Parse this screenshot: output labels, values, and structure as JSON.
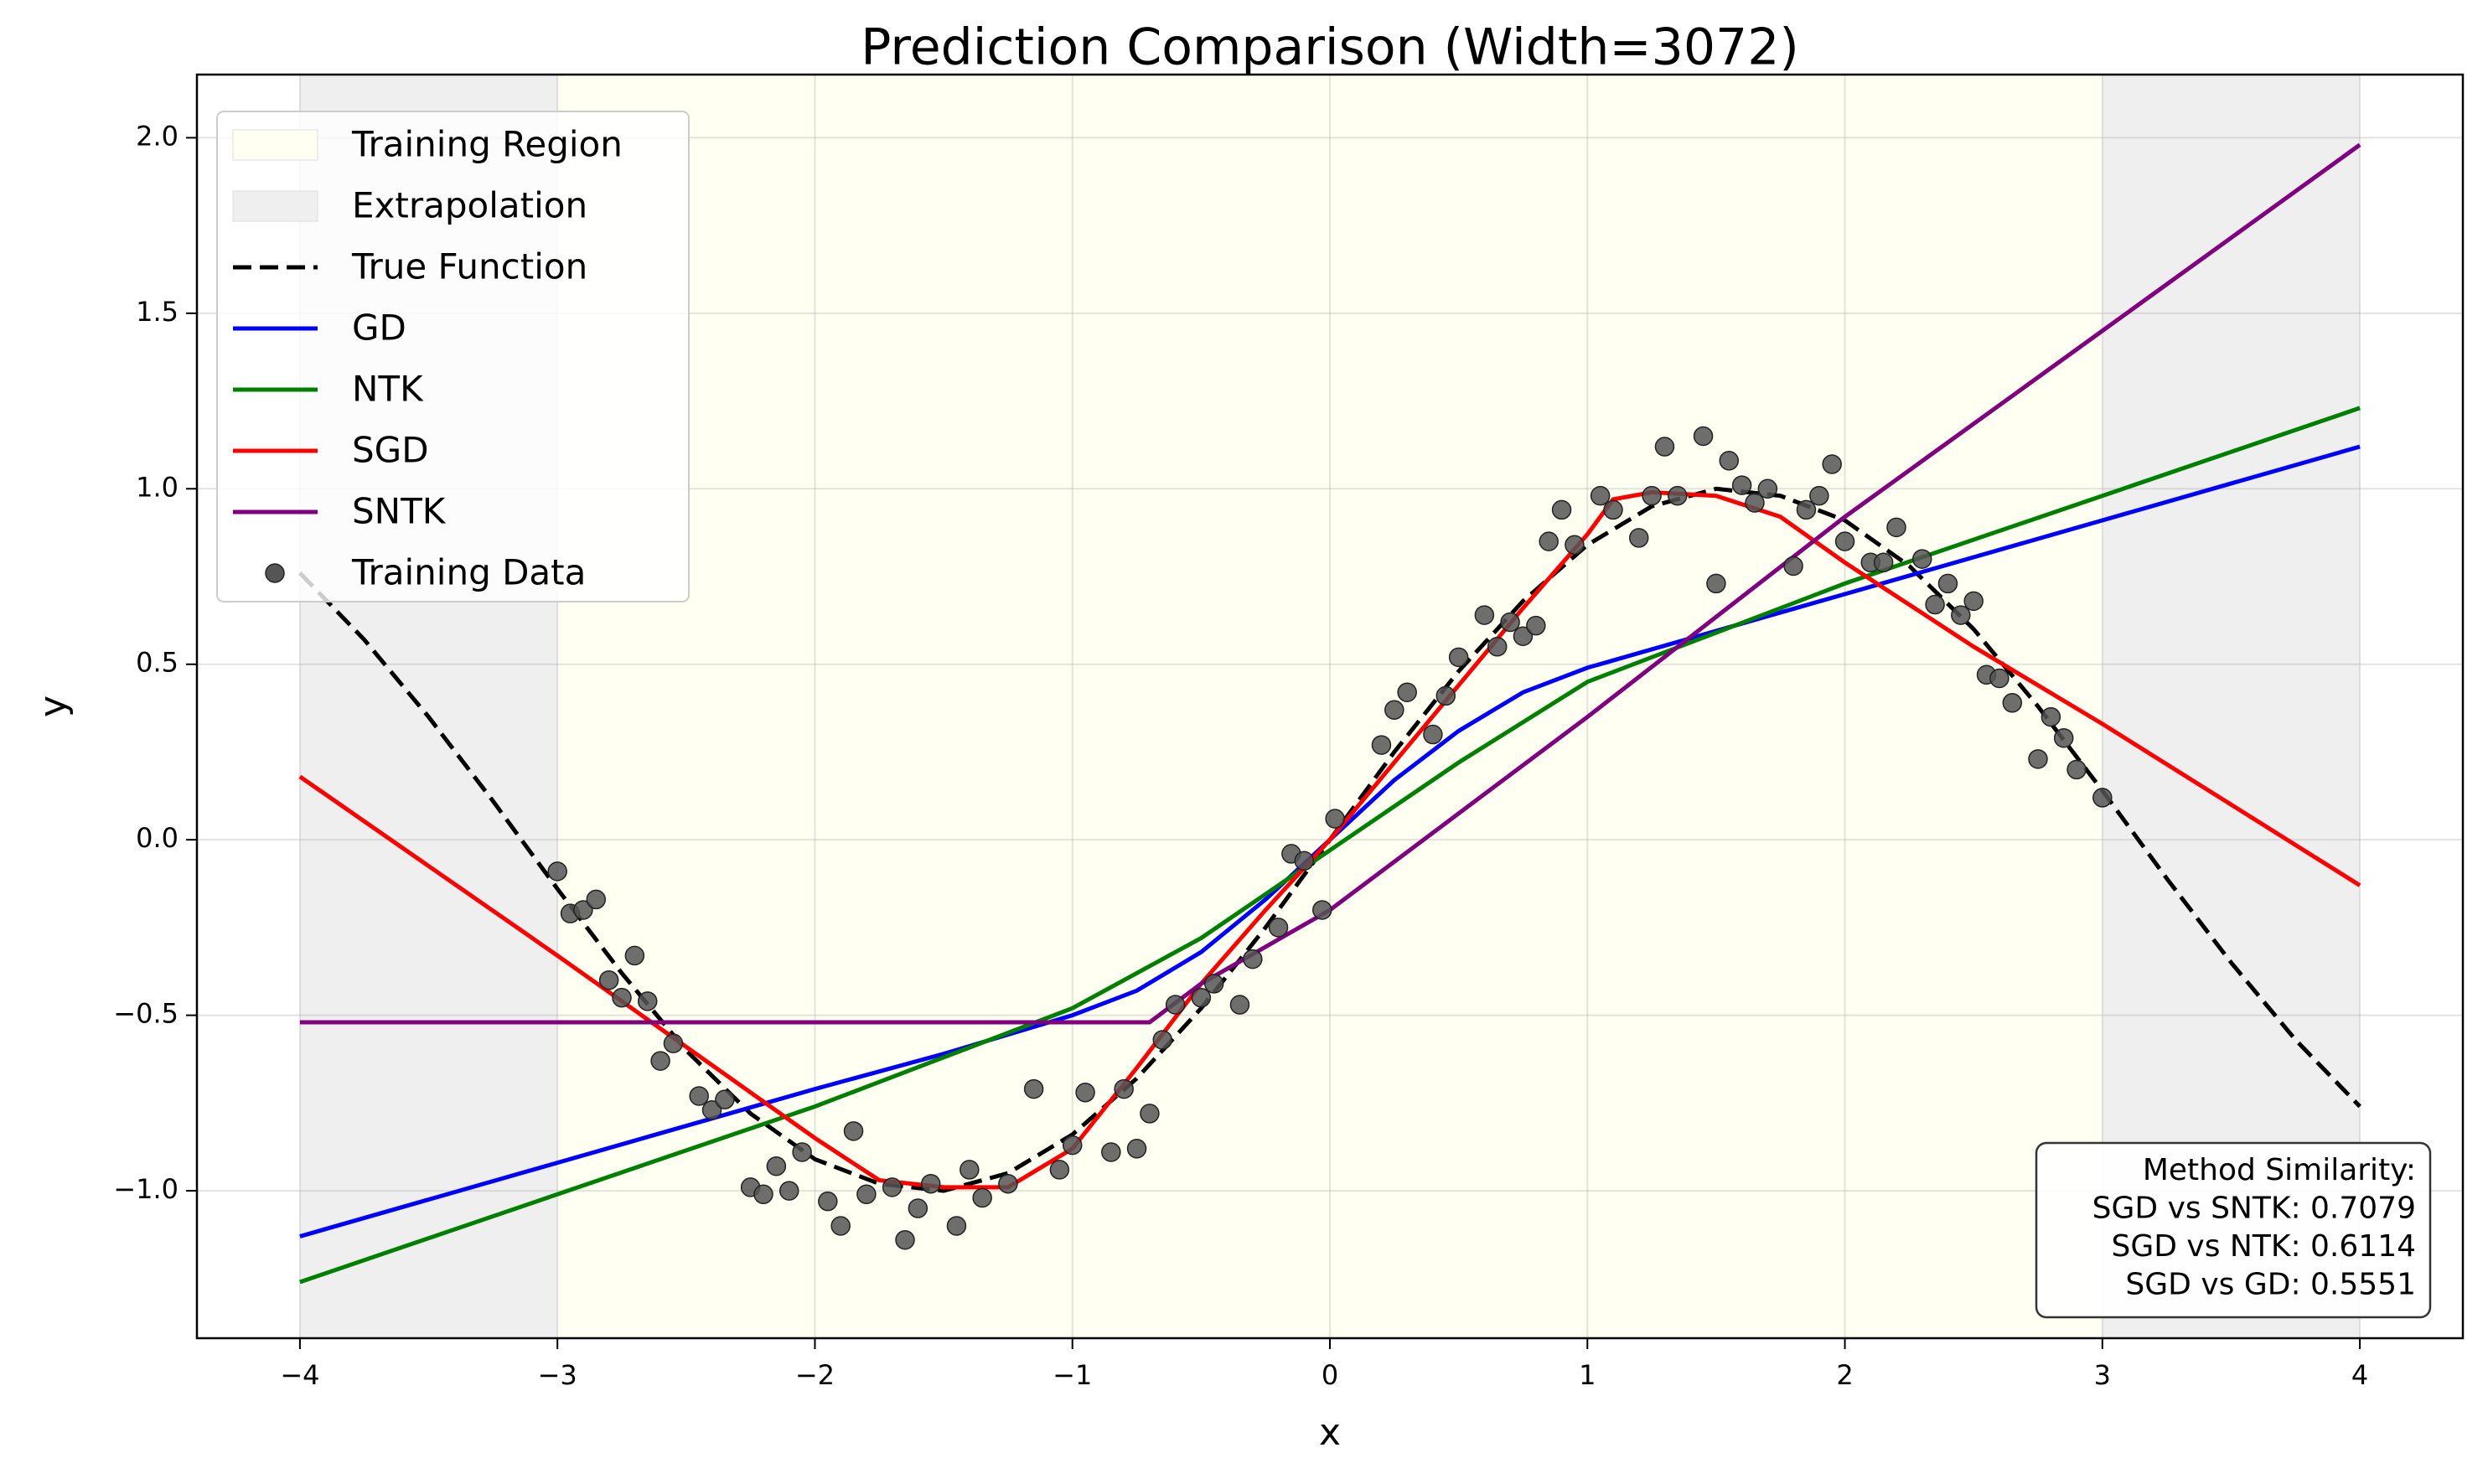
{
  "chart_data": {
    "type": "line",
    "title": "Prediction Comparison (Width=3072)",
    "xlabel": "x",
    "ylabel": "y",
    "xlim": [
      -4.4,
      4.4
    ],
    "ylim": [
      -1.42,
      2.18
    ],
    "xticks": [
      {
        "value": -4,
        "label": "−4"
      },
      {
        "value": -3,
        "label": "−3"
      },
      {
        "value": -2,
        "label": "−2"
      },
      {
        "value": -1,
        "label": "−1"
      },
      0,
      1,
      2,
      3,
      4
    ],
    "yticks": [
      {
        "value": -1,
        "label": "−1.0"
      },
      {
        "value": -0.5,
        "label": "−0.5"
      },
      {
        "value": 0,
        "label": "0.0"
      },
      0.5,
      {
        "value": 1,
        "label": "1.0"
      },
      1.5,
      {
        "value": 2,
        "label": "2.0"
      }
    ],
    "grid": true,
    "legend": "upper left",
    "regions": [
      {
        "name": "Training Region",
        "color": "#fffff2",
        "ranges": [
          [
            -3,
            3
          ]
        ]
      },
      {
        "name": "Extrapolation",
        "color": "#efefef",
        "ranges": [
          [
            -4,
            -3
          ],
          [
            3,
            4
          ]
        ]
      }
    ],
    "series": [
      {
        "name": "True Function",
        "color": "#000000",
        "style": "dashed",
        "x": [
          -4,
          -3.75,
          -3.5,
          -3.25,
          -3,
          -2.75,
          -2.5,
          -2.25,
          -2,
          -1.75,
          -1.5,
          -1.25,
          -1,
          -0.75,
          -0.5,
          -0.25,
          0,
          0.25,
          0.5,
          0.75,
          1,
          1.25,
          1.5,
          1.75,
          2,
          2.25,
          2.5,
          2.75,
          3,
          3.25,
          3.5,
          3.75,
          4
        ],
        "values": [
          0.76,
          0.57,
          0.35,
          0.11,
          -0.14,
          -0.38,
          -0.6,
          -0.78,
          -0.91,
          -0.98,
          -1.0,
          -0.95,
          -0.84,
          -0.68,
          -0.48,
          -0.25,
          0,
          0.25,
          0.48,
          0.68,
          0.84,
          0.95,
          1.0,
          0.98,
          0.91,
          0.78,
          0.6,
          0.38,
          0.14,
          -0.11,
          -0.35,
          -0.57,
          -0.76
        ]
      },
      {
        "name": "GD",
        "color": "#0000ff",
        "style": "solid",
        "x": [
          -4,
          -3,
          -2,
          -1.5,
          -1,
          -0.75,
          -0.5,
          -0.25,
          0,
          0.25,
          0.5,
          0.75,
          1,
          2,
          3,
          4
        ],
        "values": [
          -1.13,
          -0.92,
          -0.71,
          -0.61,
          -0.5,
          -0.43,
          -0.32,
          -0.17,
          0.0,
          0.17,
          0.31,
          0.42,
          0.49,
          0.7,
          0.91,
          1.12
        ]
      },
      {
        "name": "NTK",
        "color": "#008000",
        "style": "solid",
        "x": [
          -4,
          -3,
          -2,
          -1,
          -0.5,
          0,
          0.5,
          1,
          2,
          3,
          4
        ],
        "values": [
          -1.26,
          -1.01,
          -0.76,
          -0.48,
          -0.28,
          -0.03,
          0.22,
          0.45,
          0.73,
          0.98,
          1.23
        ]
      },
      {
        "name": "SGD",
        "color": "#ff0000",
        "style": "solid",
        "x": [
          -4,
          -3,
          -2,
          -1.75,
          -1.5,
          -1.25,
          -1,
          -0.75,
          -0.5,
          -0.25,
          0,
          0.25,
          0.5,
          0.75,
          1,
          1.1,
          1.25,
          1.5,
          1.75,
          2,
          2.5,
          3,
          4
        ],
        "values": [
          0.18,
          -0.33,
          -0.85,
          -0.97,
          -0.99,
          -0.99,
          -0.88,
          -0.65,
          -0.41,
          -0.2,
          0.0,
          0.22,
          0.44,
          0.66,
          0.87,
          0.97,
          0.99,
          0.98,
          0.92,
          0.79,
          0.55,
          0.33,
          -0.13
        ]
      },
      {
        "name": "SNTK",
        "color": "#800080",
        "style": "solid",
        "x": [
          -4,
          -0.7,
          -0.5,
          0,
          1,
          2,
          3,
          4
        ],
        "values": [
          -0.52,
          -0.52,
          -0.41,
          -0.2,
          0.35,
          0.92,
          1.45,
          1.98
        ]
      }
    ],
    "scatter": {
      "name": "Training Data",
      "color": "#555555",
      "x": [
        -3,
        -2.95,
        -2.9,
        -2.85,
        -2.8,
        -2.75,
        -2.7,
        -2.65,
        -2.6,
        -2.55,
        -2.45,
        -2.4,
        -2.35,
        -2.25,
        -2.2,
        -2.15,
        -2.1,
        -2.05,
        -1.95,
        -1.9,
        -1.85,
        -1.8,
        -1.7,
        -1.65,
        -1.6,
        -1.55,
        -1.45,
        -1.4,
        -1.35,
        -1.25,
        -1.15,
        -1.05,
        -1.0,
        -0.95,
        -0.85,
        -0.8,
        -0.75,
        -0.7,
        -0.65,
        -0.6,
        -0.5,
        -0.45,
        -0.35,
        -0.3,
        -0.2,
        -0.15,
        -0.1,
        -0.03,
        0.02,
        0.2,
        0.25,
        0.3,
        0.4,
        0.45,
        0.5,
        0.6,
        0.65,
        0.7,
        0.75,
        0.8,
        0.85,
        0.9,
        0.95,
        1.05,
        1.1,
        1.2,
        1.25,
        1.3,
        1.35,
        1.45,
        1.5,
        1.55,
        1.6,
        1.65,
        1.7,
        1.8,
        1.85,
        1.9,
        1.95,
        2.0,
        2.1,
        2.15,
        2.2,
        2.3,
        2.35,
        2.4,
        2.45,
        2.5,
        2.55,
        2.6,
        2.65,
        2.75,
        2.8,
        2.85,
        2.9,
        3.0
      ],
      "values": [
        -0.09,
        -0.21,
        -0.2,
        -0.17,
        -0.4,
        -0.45,
        -0.33,
        -0.46,
        -0.63,
        -0.58,
        -0.73,
        -0.77,
        -0.74,
        -0.99,
        -1.01,
        -0.93,
        -1.0,
        -0.89,
        -1.03,
        -1.1,
        -0.83,
        -1.01,
        -0.99,
        -1.14,
        -1.05,
        -0.98,
        -1.1,
        -0.94,
        -1.02,
        -0.98,
        -0.71,
        -0.94,
        -0.87,
        -0.72,
        -0.89,
        -0.71,
        -0.88,
        -0.78,
        -0.57,
        -0.47,
        -0.45,
        -0.41,
        -0.47,
        -0.34,
        -0.25,
        -0.04,
        -0.06,
        -0.2,
        0.06,
        0.27,
        0.37,
        0.42,
        0.3,
        0.41,
        0.52,
        0.64,
        0.55,
        0.62,
        0.58,
        0.61,
        0.85,
        0.94,
        0.84,
        0.98,
        0.94,
        0.86,
        0.98,
        1.12,
        0.98,
        1.15,
        0.73,
        1.08,
        1.01,
        0.96,
        1.0,
        0.78,
        0.94,
        0.98,
        1.07,
        0.85,
        0.79,
        0.79,
        0.89,
        0.8,
        0.67,
        0.73,
        0.64,
        0.68,
        0.47,
        0.46,
        0.39,
        0.23,
        0.35,
        0.29,
        0.2,
        0.12
      ]
    },
    "annotation": [
      "Method Similarity:",
      "SGD vs SNTK: 0.7079",
      "SGD vs NTK: 0.6114",
      "SGD vs GD: 0.5551"
    ]
  }
}
